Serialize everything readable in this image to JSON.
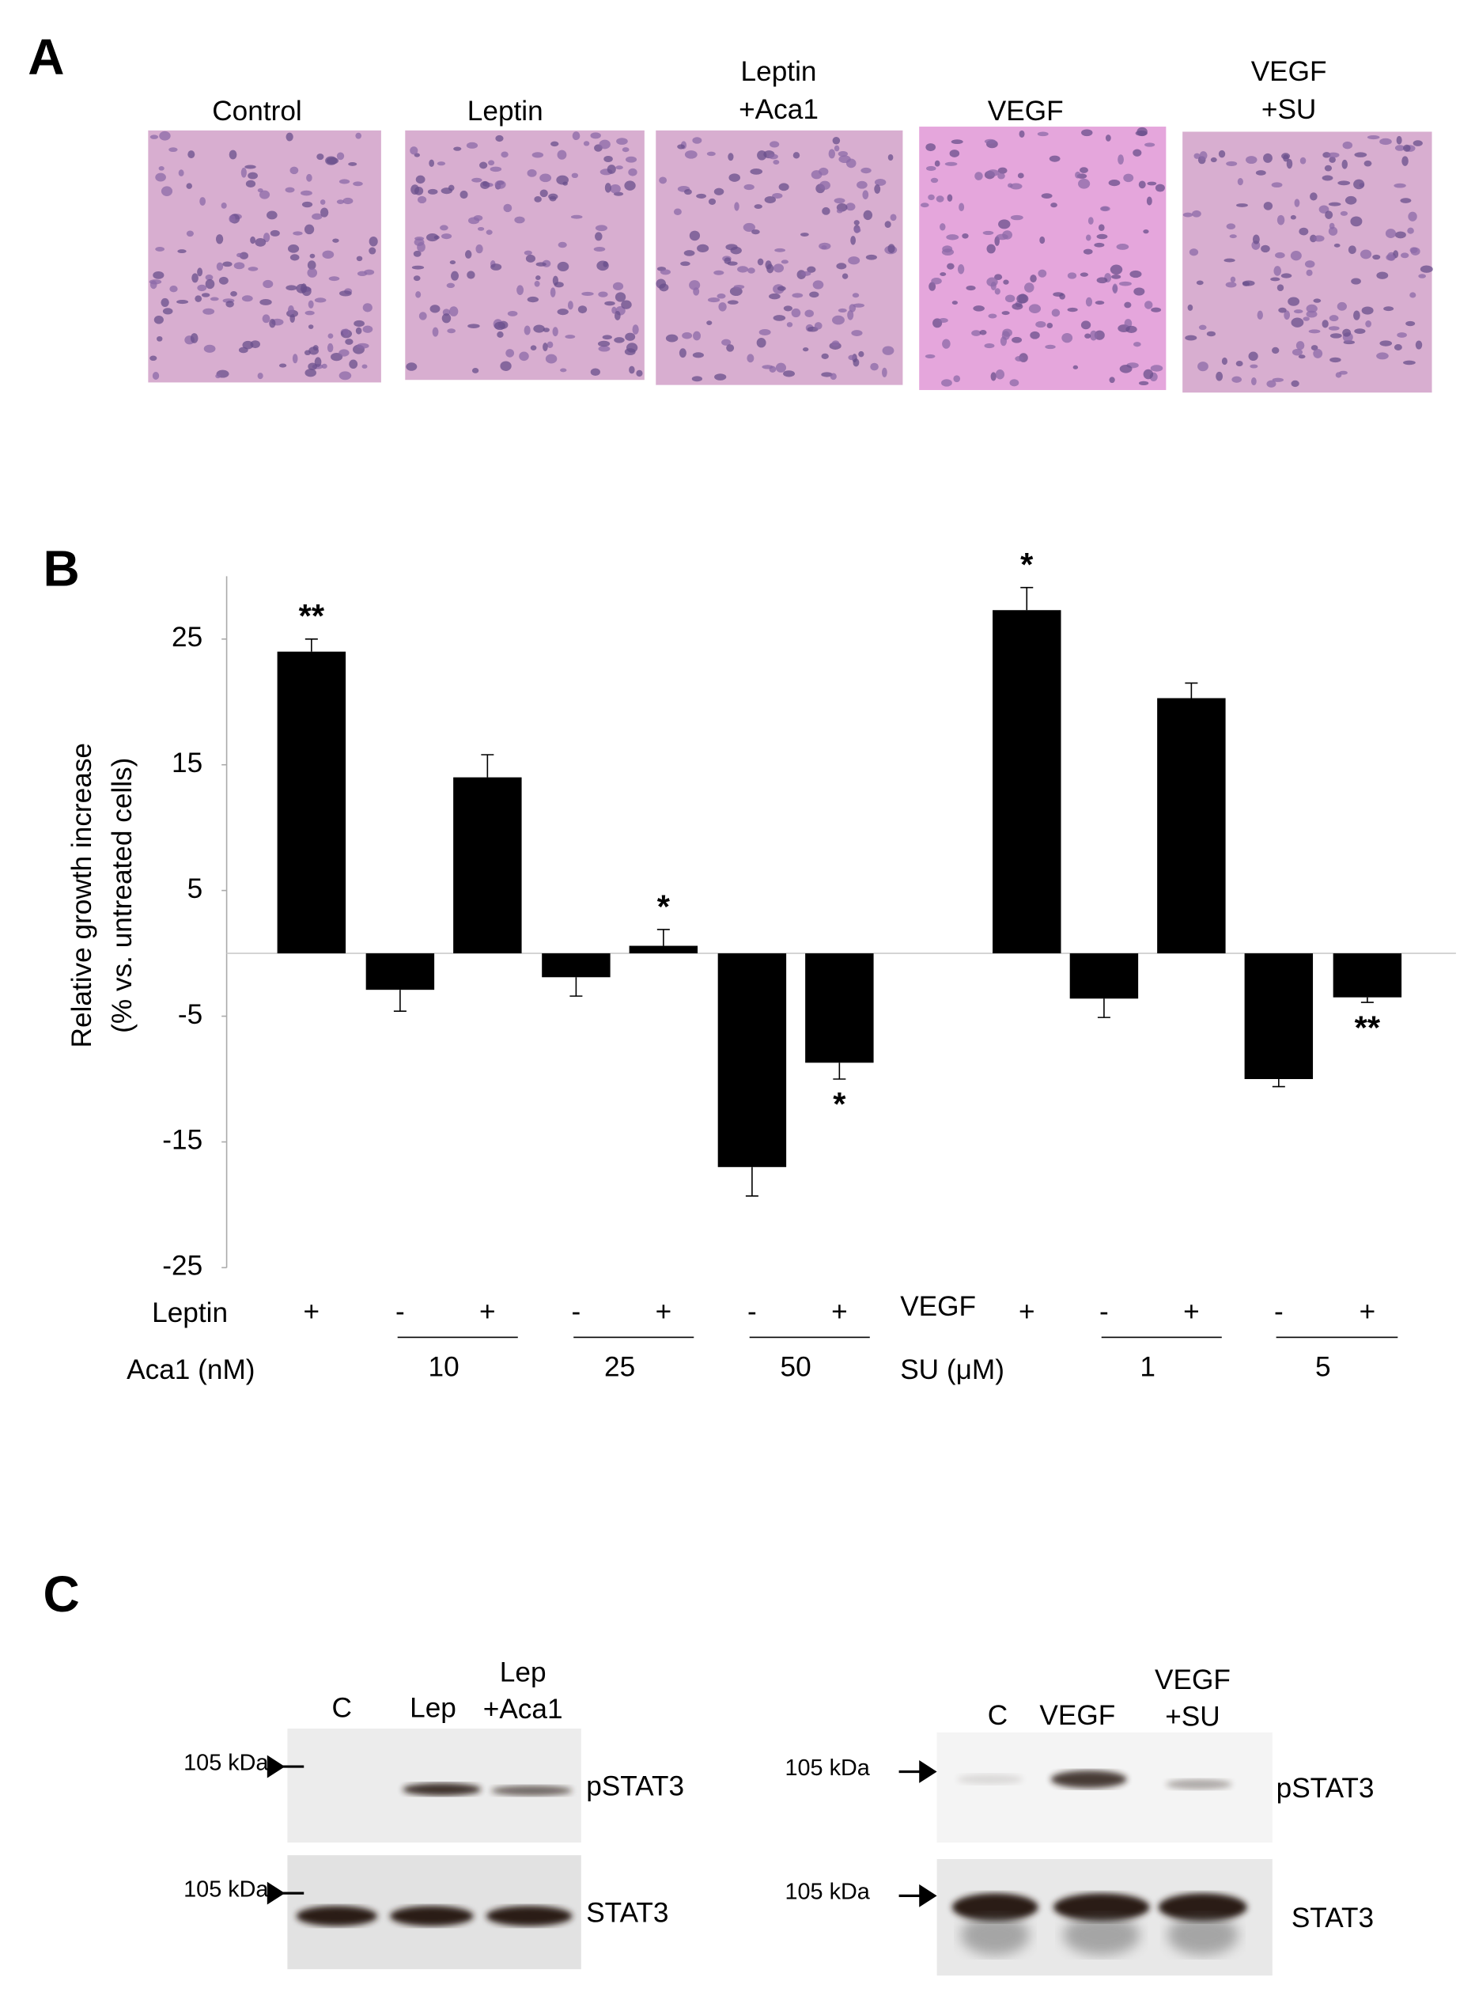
{
  "panel_a": {
    "label": "A",
    "images": [
      {
        "caption": [
          "Control"
        ]
      },
      {
        "caption": [
          "Leptin"
        ]
      },
      {
        "caption": [
          "Leptin",
          "+Aca1"
        ]
      },
      {
        "caption": [
          "VEGF"
        ]
      },
      {
        "caption": [
          "VEGF",
          "+SU"
        ]
      }
    ]
  },
  "chart_data": {
    "type": "bar",
    "panel_label": "B",
    "y_label": [
      "Relative growth increase",
      "(% vs. untreated cells)"
    ],
    "values": [
      24.0,
      -2.9,
      14.0,
      -1.9,
      0.6,
      -17.0,
      -8.7,
      27.3,
      -3.6,
      20.3,
      -10.0,
      -3.5
    ],
    "errors": [
      1.0,
      1.7,
      1.8,
      1.5,
      1.3,
      2.3,
      1.3,
      1.8,
      1.5,
      1.2,
      0.6,
      0.4
    ],
    "significance": [
      "**",
      null,
      null,
      null,
      "*",
      null,
      "*",
      "*",
      null,
      null,
      null,
      "**"
    ],
    "color": "#000000",
    "ylim": [
      -25,
      30
    ],
    "yticks": [
      -25,
      -15,
      -5,
      5,
      15,
      25
    ],
    "grid": false,
    "conditions": {
      "leptin_label": "Leptin",
      "aca1_label": "Aca1 (nM)",
      "vegf_label": "VEGF",
      "su_label": "SU (μM)",
      "signs": [
        "+",
        "-",
        "+",
        "-",
        "+",
        "-",
        "+",
        "+",
        "-",
        "+",
        "-",
        "+"
      ],
      "doses": [
        "10",
        "25",
        "50",
        "1",
        "5"
      ]
    }
  },
  "panel_c": {
    "label": "C",
    "blots": [
      {
        "lanes": [
          [
            "C"
          ],
          [
            "Lep"
          ],
          [
            "Lep",
            "+Aca1"
          ]
        ],
        "marker": "105 kDa",
        "rows": [
          "pSTAT3",
          "STAT3"
        ]
      },
      {
        "lanes": [
          [
            "C"
          ],
          [
            "VEGF"
          ],
          [
            "VEGF",
            "+SU"
          ]
        ],
        "marker": "105 kDa",
        "rows": [
          "pSTAT3",
          "STAT3"
        ]
      }
    ]
  }
}
